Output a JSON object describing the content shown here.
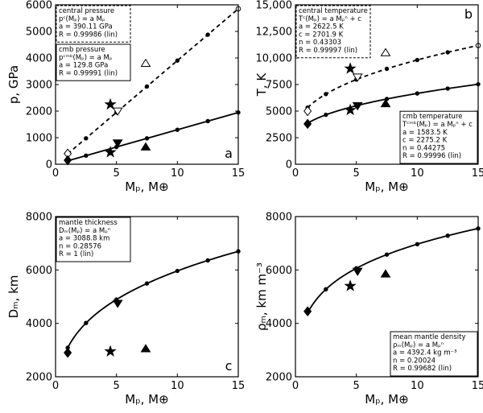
{
  "colors": {
    "ink": "#000000",
    "background": "#ffffff"
  },
  "chart_data": [
    {
      "type": "line",
      "letter": "a",
      "xlabel": "Mₚ, M⊕",
      "ylabel": "p, GPa",
      "xlim": [
        0,
        15
      ],
      "ylim": [
        0,
        6000
      ],
      "xticks": [
        0,
        5,
        10,
        15
      ],
      "yticks": [
        0,
        1000,
        2000,
        3000,
        4000,
        5000,
        6000
      ],
      "xticklabels": [
        "0",
        "5",
        "10",
        "15"
      ],
      "yticklabels": [
        "0",
        "1000",
        "2000",
        "3000",
        "4000",
        "5000",
        "6000"
      ],
      "fits": [
        {
          "style": "dashed",
          "a": 390.11,
          "n": 1,
          "x": [
            1,
            2.5,
            5,
            7.5,
            10,
            12.5,
            15
          ]
        },
        {
          "style": "solid",
          "a": 129.8,
          "n": 1,
          "x": [
            1,
            2.5,
            5,
            7.5,
            10,
            12.5,
            15
          ]
        }
      ],
      "legends": [
        {
          "placement": "top-left",
          "lines": [
            "central pressure",
            "pᶜ(Mₚ) = a Mₚ",
            "a = 390.11 GPa",
            "R = 0.99986 (lin)"
          ]
        },
        {
          "placement": "upper-left",
          "lines": [
            "cmb pressure",
            "pᶜᵐᵇ(Mₚ) = a Mₚ",
            "a = 129.8 GPa",
            "R = 0.99991  (lin)"
          ]
        }
      ],
      "symbols": [
        {
          "marker": "diamond-open",
          "x": 1,
          "y": 400
        },
        {
          "marker": "diamond-filled",
          "x": 1,
          "y": 150
        },
        {
          "marker": "star",
          "x": 4.5,
          "y": 2250
        },
        {
          "marker": "star",
          "x": 4.5,
          "y": 450
        },
        {
          "marker": "triangle-down-open",
          "x": 5.1,
          "y": 2000
        },
        {
          "marker": "triangle-down-filled",
          "x": 5.1,
          "y": 800
        },
        {
          "marker": "triangle-up-open",
          "x": 7.4,
          "y": 3800
        },
        {
          "marker": "triangle-up-filled",
          "x": 7.4,
          "y": 650
        }
      ]
    },
    {
      "type": "line",
      "letter": "b",
      "xlabel": "Mₚ, M⊕",
      "ylabel": "T, K",
      "xlim": [
        0,
        15
      ],
      "ylim": [
        0,
        15000
      ],
      "xticks": [
        0,
        5,
        10,
        15
      ],
      "yticks": [
        0,
        2500,
        5000,
        7500,
        10000,
        12500,
        15000
      ],
      "xticklabels": [
        "0",
        "5",
        "10",
        "15"
      ],
      "yticklabels": [
        "0",
        "2500",
        "5000",
        "7500",
        "10,000",
        "12,500",
        "15,000"
      ],
      "fits": [
        {
          "style": "dashed",
          "a": 2622.5,
          "c": 2701.9,
          "n": 0.43303,
          "x": [
            1,
            2.5,
            5,
            7.5,
            10,
            12.5,
            15
          ]
        },
        {
          "style": "solid",
          "a": 1583.5,
          "c": 2275.2,
          "n": 0.44275,
          "x": [
            1,
            2.5,
            5,
            7.5,
            10,
            12.5,
            15
          ]
        }
      ],
      "legends": [
        {
          "placement": "top-left",
          "lines": [
            "central temperature",
            "Tᶜ(Mₚ) = a Mₚⁿ + c",
            "a = 2622.5 K",
            "c = 2701.9 K",
            "n = 0.43303",
            "R = 0.99997 (lin)"
          ]
        },
        {
          "placement": "bottom-right",
          "lines": [
            "cmb temperature",
            "Tᶜᵐᵇ(Mₚ) = a Mₚⁿ + c",
            "a = 1583.5 K",
            "c = 2275.2 K",
            "n = 0.44275",
            "R = 0.99996  (lin)"
          ]
        }
      ],
      "symbols": [
        {
          "marker": "diamond-open",
          "x": 1,
          "y": 5000
        },
        {
          "marker": "diamond-filled",
          "x": 1,
          "y": 3800
        },
        {
          "marker": "star",
          "x": 4.5,
          "y": 9000
        },
        {
          "marker": "star",
          "x": 4.5,
          "y": 5100
        },
        {
          "marker": "triangle-down-open",
          "x": 5.1,
          "y": 8200
        },
        {
          "marker": "triangle-down-filled",
          "x": 5.1,
          "y": 5500
        },
        {
          "marker": "triangle-up-open",
          "x": 7.4,
          "y": 10500
        },
        {
          "marker": "triangle-up-filled",
          "x": 7.4,
          "y": 5700
        }
      ]
    },
    {
      "type": "line",
      "letter": "c",
      "xlabel": "Mₚ, M⊕",
      "ylabel": "Dₘ, km",
      "xlim": [
        0,
        15
      ],
      "ylim": [
        2000,
        8000
      ],
      "xticks": [
        0,
        5,
        10,
        15
      ],
      "yticks": [
        2000,
        4000,
        6000,
        8000
      ],
      "xticklabels": [
        "0",
        "5",
        "10",
        "15"
      ],
      "yticklabels": [
        "2000",
        "4000",
        "6000",
        "8000"
      ],
      "fits": [
        {
          "style": "solid",
          "a": 3088.8,
          "n": 0.28576,
          "x": [
            1,
            2.5,
            5,
            7.5,
            10,
            12.5,
            15
          ]
        }
      ],
      "legends": [
        {
          "placement": "top-left",
          "lines": [
            "mantle thickness",
            "Dₘ(Mₚ) = a Mₚⁿ",
            "a = 3088.8 km",
            "n = 0.28576",
            "R = 1  (lin)"
          ]
        }
      ],
      "symbols": [
        {
          "marker": "diamond-filled",
          "x": 1,
          "y": 2900
        },
        {
          "marker": "star",
          "x": 4.5,
          "y": 2950
        },
        {
          "marker": "triangle-down-filled",
          "x": 5.1,
          "y": 4750
        },
        {
          "marker": "triangle-up-filled",
          "x": 7.4,
          "y": 3050
        }
      ]
    },
    {
      "type": "line",
      "letter": "d",
      "xlabel": "Mₚ, M⊕",
      "ylabel": "ρₘ, km m⁻³",
      "xlim": [
        0,
        15
      ],
      "ylim": [
        2000,
        8000
      ],
      "xticks": [
        0,
        5,
        10,
        15
      ],
      "yticks": [
        2000,
        4000,
        6000,
        8000
      ],
      "xticklabels": [
        "0",
        "5",
        "10",
        "15"
      ],
      "yticklabels": [
        "2000",
        "4000",
        "6000",
        "8000"
      ],
      "fits": [
        {
          "style": "solid",
          "a": 4392.4,
          "n": 0.20024,
          "x": [
            1,
            2.5,
            5,
            7.5,
            10,
            12.5,
            15
          ]
        }
      ],
      "legends": [
        {
          "placement": "bottom-right",
          "lines": [
            "mean mantle density",
            "ρₘ(Mₚ) = a Mₚⁿ",
            "a = 4392.4 kg m⁻³",
            "n = 0.20024",
            "R = 0.99682  (lin)"
          ]
        }
      ],
      "symbols": [
        {
          "marker": "diamond-filled",
          "x": 1,
          "y": 4450
        },
        {
          "marker": "star",
          "x": 4.5,
          "y": 5400
        },
        {
          "marker": "triangle-down-filled",
          "x": 5.1,
          "y": 5950
        },
        {
          "marker": "triangle-up-filled",
          "x": 7.4,
          "y": 5850
        }
      ]
    }
  ]
}
